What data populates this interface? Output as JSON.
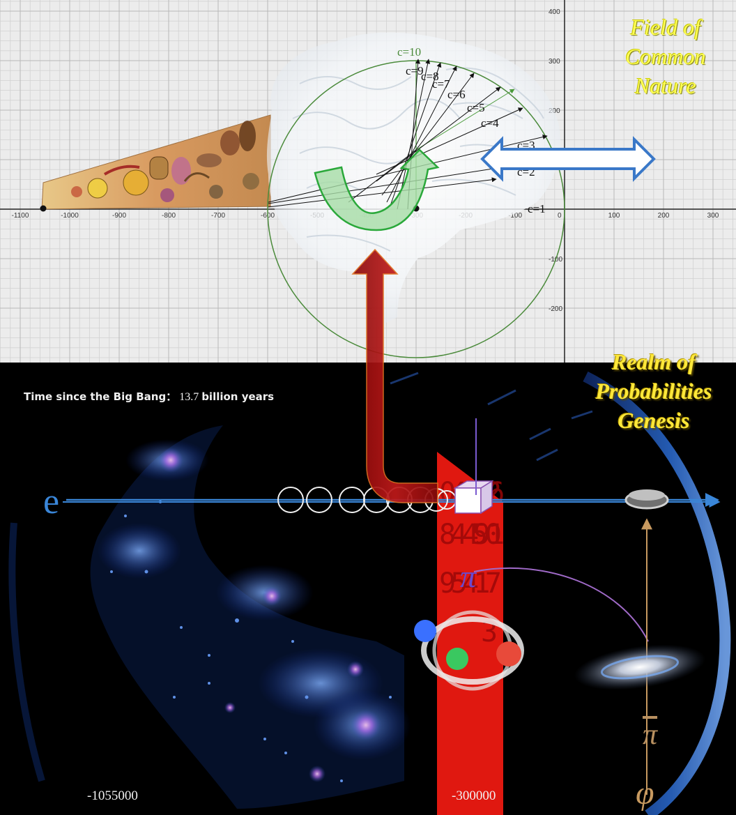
{
  "titles": {
    "field": [
      "Field of",
      "Common",
      "Nature"
    ],
    "realm": [
      "Realm of",
      "Probabilities",
      "Genesis"
    ]
  },
  "big_bang": {
    "label": "Time since the Big Bang：",
    "value": "13.7",
    "unit": "billion years"
  },
  "graph": {
    "x_ticks": [
      "-1100",
      "-1000",
      "-900",
      "-800",
      "-700",
      "-600",
      "-500",
      "-400",
      "-300",
      "-200",
      "-100",
      "0",
      "100",
      "200",
      "300"
    ],
    "y_ticks": [
      "400",
      "300",
      "200",
      "100",
      "-100",
      "-200"
    ],
    "c_labels": [
      "c=1",
      "c=2",
      "c=3",
      "c=4",
      "c=5",
      "c=6",
      "c=7",
      "c=8",
      "c=9",
      "c=10"
    ]
  },
  "axis_bottom": {
    "e_symbol": "e",
    "left_value": "-1055000",
    "right_value": "-300000",
    "pi_symbol": "π",
    "pi_bar": "π",
    "phi_symbol": "φ"
  },
  "digit_panel": {
    "rows": [
      "04172",
      "96",
      "84490",
      "51",
      "95417",
      "3"
    ]
  },
  "colors": {
    "graph_bg": "#ececec",
    "circle": "#4a8a3a",
    "blue_arrow": "#3a78c8",
    "red_arrow": "#b01818",
    "green_arrow": "#3ab44a",
    "title_gold": "#ffff33",
    "digit_panel": "#e01810"
  }
}
